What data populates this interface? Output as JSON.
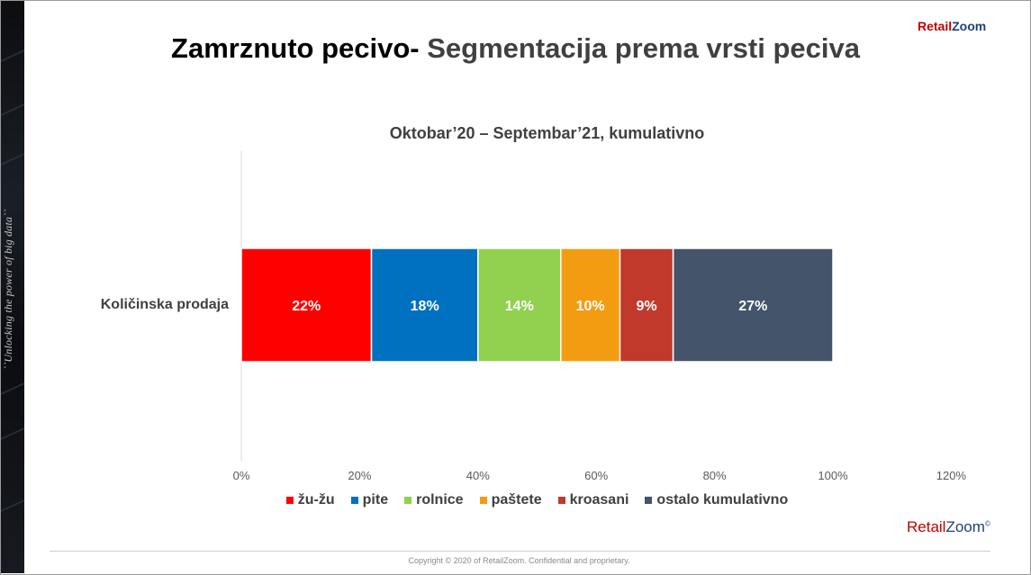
{
  "brand": {
    "part1": "Retail",
    "part2": "Zoom",
    "mark": "©"
  },
  "header": {
    "title_part1": "Zamrznuto pecivo- ",
    "title_part2": "Segmentacija prema vrsti peciva"
  },
  "side_tagline": "``Unlocking the power of big data``",
  "footer": {
    "copyright": "Copyright © 2020 of RetailZoom. Confidential and proprietary."
  },
  "colors": {
    "accent_red": "#c00000",
    "brand_blue": "#1f3f7f",
    "text_gray": "#404040"
  },
  "chart_data": {
    "type": "bar",
    "orientation": "horizontal",
    "stacked": true,
    "title": "Oktobar’20 – Septembar’21, kumulativno",
    "categories": [
      "Količinska prodaja"
    ],
    "xlim": [
      0,
      120
    ],
    "x_ticks": [
      "0%",
      "20%",
      "40%",
      "60%",
      "80%",
      "100%",
      "120%"
    ],
    "grid": false,
    "legend_position": "bottom",
    "series": [
      {
        "name": "žu-žu",
        "values": [
          22
        ],
        "label": "22%",
        "color": "#ff0000"
      },
      {
        "name": "pite",
        "values": [
          18
        ],
        "label": "18%",
        "color": "#0070c0"
      },
      {
        "name": "rolnice",
        "values": [
          14
        ],
        "label": "14%",
        "color": "#92d050"
      },
      {
        "name": "paštete",
        "values": [
          10
        ],
        "label": "10%",
        "color": "#f39c12"
      },
      {
        "name": "kroasani",
        "values": [
          9
        ],
        "label": "9%",
        "color": "#c0392b"
      },
      {
        "name": "ostalo kumulativno",
        "values": [
          27
        ],
        "label": "27%",
        "color": "#44546a"
      }
    ]
  }
}
